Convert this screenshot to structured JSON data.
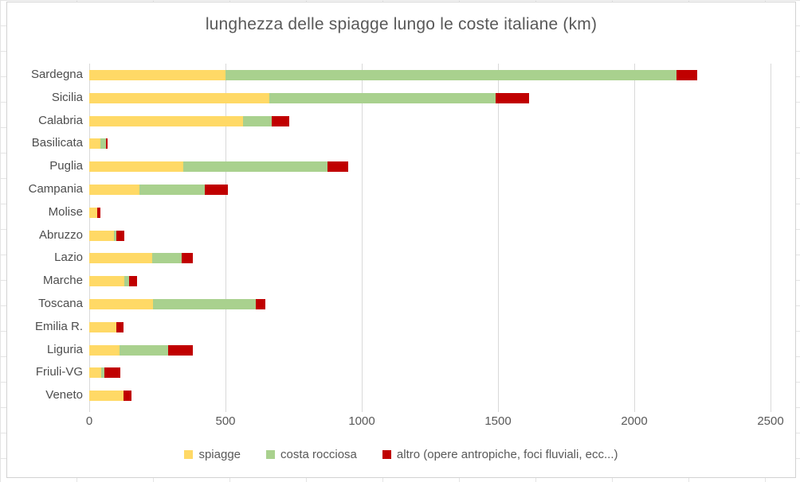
{
  "chart_data": {
    "type": "bar",
    "subtype": "horizontal-stacked",
    "title": "lunghezza delle spiagge lungo le coste italiane (km)",
    "categories": [
      "Sardegna",
      "Sicilia",
      "Calabria",
      "Basilicata",
      "Puglia",
      "Campania",
      "Molise",
      "Abruzzo",
      "Lazio",
      "Marche",
      "Toscana",
      "Emilia R.",
      "Liguria",
      "Friuli-VG",
      "Veneto"
    ],
    "series": [
      {
        "name": "spiagge",
        "color": "#FFD966",
        "values": [
          500,
          660,
          565,
          40,
          345,
          185,
          28,
          90,
          230,
          130,
          235,
          100,
          110,
          45,
          125
        ]
      },
      {
        "name": "costa rocciosa",
        "color": "#A9D18E",
        "values": [
          1655,
          830,
          105,
          20,
          530,
          240,
          0,
          10,
          110,
          15,
          375,
          0,
          180,
          10,
          0
        ]
      },
      {
        "name": "altro (opere antropiche, foci fluviali, ecc...)",
        "color": "#C00000",
        "values": [
          75,
          125,
          65,
          8,
          75,
          85,
          12,
          28,
          40,
          30,
          35,
          25,
          90,
          58,
          30
        ]
      }
    ],
    "x_axis": {
      "min": 0,
      "max": 2500,
      "tick_interval": 500,
      "tick_labels": [
        "0",
        "500",
        "1000",
        "1500",
        "2000",
        "2500"
      ]
    },
    "legend_position": "bottom",
    "grid": true,
    "gridline_color": "#d9d9d9",
    "title_color": "#595959"
  }
}
